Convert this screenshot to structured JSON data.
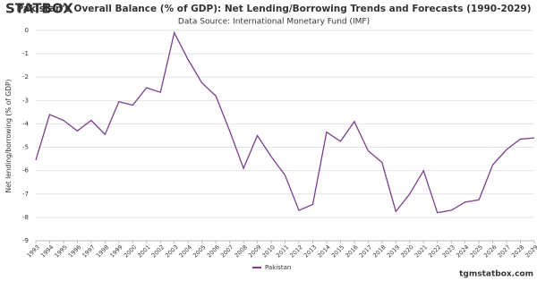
{
  "logo": "STATBOX",
  "footer": "tgmstatbox.com",
  "chart_data": {
    "type": "line",
    "title": "Pakistan's Overall Balance (% of GDP): Net Lending/Borrowing Trends and Forecasts (1990-2029)",
    "subtitle": "Data Source: International Monetary Fund (IMF)",
    "y_label": "Net lending/borrowing (% of GDP)",
    "categories": [
      "1993",
      "1994",
      "1995",
      "1996",
      "1997",
      "1998",
      "1999",
      "2000",
      "2001",
      "2002",
      "2003",
      "2004",
      "2005",
      "2006",
      "2007",
      "2008",
      "2009",
      "2010",
      "2011",
      "2012",
      "2013",
      "2014",
      "2015",
      "2016",
      "2017",
      "2018",
      "2019",
      "2020",
      "2021",
      "2022",
      "2023",
      "2024",
      "2025",
      "2026",
      "2027",
      "2028",
      "2029"
    ],
    "series": [
      {
        "name": "Pakistan",
        "color": "#7b3f8c",
        "values": [
          -5.55,
          -3.6,
          -3.85,
          -4.3,
          -3.85,
          -4.45,
          -3.05,
          -3.2,
          -2.45,
          -2.65,
          -0.1,
          -1.25,
          -2.25,
          -2.8,
          -4.3,
          -5.9,
          -4.5,
          -5.4,
          -6.2,
          -7.7,
          -7.45,
          -4.35,
          -4.75,
          -3.9,
          -5.15,
          -5.65,
          -7.75,
          -7.0,
          -6.0,
          -7.8,
          -7.7,
          -7.35,
          -7.25,
          -5.75,
          -5.1,
          -4.65,
          -4.6
        ]
      }
    ],
    "ylim": [
      -9,
      0
    ],
    "yticks": [
      0,
      -1,
      -2,
      -3,
      -4,
      -5,
      -6,
      -7,
      -8,
      -9
    ],
    "grid": true,
    "legend": "bottom"
  }
}
